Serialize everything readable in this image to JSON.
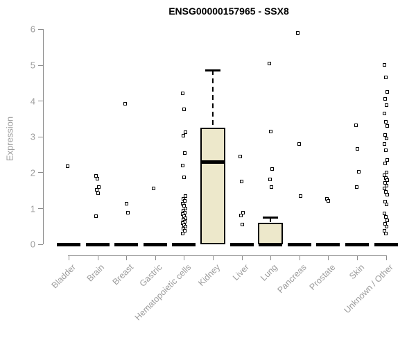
{
  "title": "ENSG00000157965 - SSX8",
  "colors": {
    "box_fill": "#EDE8CB",
    "box_border": "#000000",
    "marker": "#000000",
    "axis": "#8c8c8c",
    "tick_label": "#9c9c9c",
    "title": "#000000"
  },
  "chart_data": {
    "type": "boxplot",
    "title": "ENSG00000157965 - SSX8",
    "xlabel": "",
    "ylabel": "Expression",
    "ylim": [
      0,
      6
    ],
    "yticks": [
      0,
      1,
      2,
      3,
      4,
      5,
      6
    ],
    "grid": false,
    "legend": "none",
    "categories": [
      "Bladder",
      "Brain",
      "Breast",
      "Gastric",
      "Hematopoietic cells",
      "Kidney",
      "Liver",
      "Lung",
      "Pancreas",
      "Prostate",
      "Skin",
      "Unknown / Other"
    ],
    "series": [
      {
        "name": "Bladder",
        "box": {
          "q1": 0,
          "median": 0,
          "q3": 0,
          "whisker_low": 0,
          "whisker_high": 0
        },
        "points": [
          2.17
        ]
      },
      {
        "name": "Brain",
        "box": {
          "q1": 0,
          "median": 0,
          "q3": 0,
          "whisker_low": 0,
          "whisker_high": 0
        },
        "points": [
          1.9,
          1.83,
          1.6,
          1.52,
          1.41,
          0.78
        ]
      },
      {
        "name": "Breast",
        "box": {
          "q1": 0,
          "median": 0,
          "q3": 0,
          "whisker_low": 0,
          "whisker_high": 0
        },
        "points": [
          3.92,
          1.12,
          0.88
        ]
      },
      {
        "name": "Gastric",
        "box": {
          "q1": 0,
          "median": 0,
          "q3": 0,
          "whisker_low": 0,
          "whisker_high": 0
        },
        "points": [
          1.55
        ]
      },
      {
        "name": "Hematopoietic cells",
        "box": {
          "q1": 0,
          "median": 0,
          "q3": 0,
          "whisker_low": 0,
          "whisker_high": 0
        },
        "points": [
          4.2,
          3.77,
          3.13,
          3.03,
          2.55,
          2.2,
          1.86,
          1.35,
          1.27,
          1.2,
          1.13,
          1.06,
          1.0,
          0.94,
          0.88,
          0.83,
          0.78,
          0.73,
          0.68,
          0.63,
          0.58,
          0.53,
          0.48,
          0.43,
          0.37,
          0.3
        ]
      },
      {
        "name": "Kidney",
        "box": {
          "q1": 0,
          "median": 2.3,
          "q3": 3.25,
          "whisker_low": 0,
          "whisker_high": 4.85
        },
        "points": []
      },
      {
        "name": "Liver",
        "box": {
          "q1": 0,
          "median": 0,
          "q3": 0,
          "whisker_low": 0,
          "whisker_high": 0
        },
        "points": [
          2.45,
          1.75,
          0.87,
          0.8,
          0.55
        ]
      },
      {
        "name": "Lung",
        "box": {
          "q1": 0,
          "median": 0,
          "q3": 0.6,
          "whisker_low": 0,
          "whisker_high": 0.75
        },
        "points": [
          5.05,
          3.15,
          2.1,
          1.8,
          1.6
        ]
      },
      {
        "name": "Pancreas",
        "box": {
          "q1": 0,
          "median": 0,
          "q3": 0,
          "whisker_low": 0,
          "whisker_high": 0
        },
        "points": [
          5.9,
          2.8,
          1.35
        ]
      },
      {
        "name": "Prostate",
        "box": {
          "q1": 0,
          "median": 0,
          "q3": 0,
          "whisker_low": 0,
          "whisker_high": 0
        },
        "points": [
          1.27,
          1.2
        ]
      },
      {
        "name": "Skin",
        "box": {
          "q1": 0,
          "median": 0,
          "q3": 0,
          "whisker_low": 0,
          "whisker_high": 0
        },
        "points": [
          3.32,
          2.65,
          2.02,
          1.6
        ]
      },
      {
        "name": "Unknown / Other",
        "box": {
          "q1": 0,
          "median": 0,
          "q3": 0,
          "whisker_low": 0,
          "whisker_high": 0
        },
        "points": [
          5.0,
          4.65,
          4.25,
          4.05,
          3.88,
          3.65,
          3.42,
          3.3,
          3.05,
          2.95,
          2.8,
          2.62,
          2.35,
          2.25,
          2.0,
          1.92,
          1.85,
          1.78,
          1.7,
          1.63,
          1.55,
          1.46,
          1.38,
          1.19,
          1.1,
          0.85,
          0.76,
          0.66,
          0.56,
          0.48,
          0.38,
          0.3
        ]
      }
    ]
  }
}
